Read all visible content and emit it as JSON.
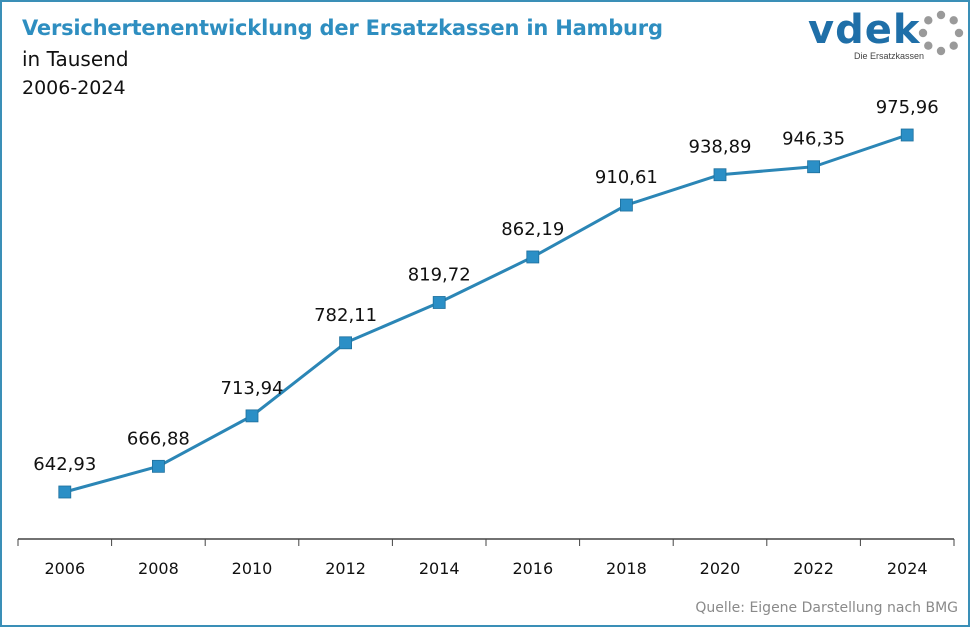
{
  "header": {
    "title": "Versichertenentwicklung der Ersatzkassen in Hamburg",
    "subtitle": "in Tausend",
    "period": "2006-2024"
  },
  "logo": {
    "wordmark": "vdek",
    "tagline": "Die Ersatzkassen"
  },
  "footer": {
    "source": "Quelle: Eigene Darstellung nach BMG"
  },
  "colors": {
    "accent": "#2e8ec0",
    "line": "#2b86b6",
    "marker": "#2b8fc6",
    "axis": "#444444"
  },
  "chart_data": {
    "type": "line",
    "title": "Versichertenentwicklung der Ersatzkassen in Hamburg",
    "subtitle": "in Tausend",
    "categories": [
      "2006",
      "2008",
      "2010",
      "2012",
      "2014",
      "2016",
      "2018",
      "2020",
      "2022",
      "2024"
    ],
    "series": [
      {
        "values": [
          642.93,
          666.88,
          713.94,
          782.11,
          819.72,
          862.19,
          910.61,
          938.89,
          946.35,
          975.96
        ],
        "labels": [
          "642,93",
          "666,88",
          "713,94",
          "782,11",
          "819,72",
          "862,19",
          "910,61",
          "938,89",
          "946,35",
          "975,96"
        ]
      }
    ],
    "grid": false,
    "legend": "none",
    "y_axis_visible": false
  }
}
